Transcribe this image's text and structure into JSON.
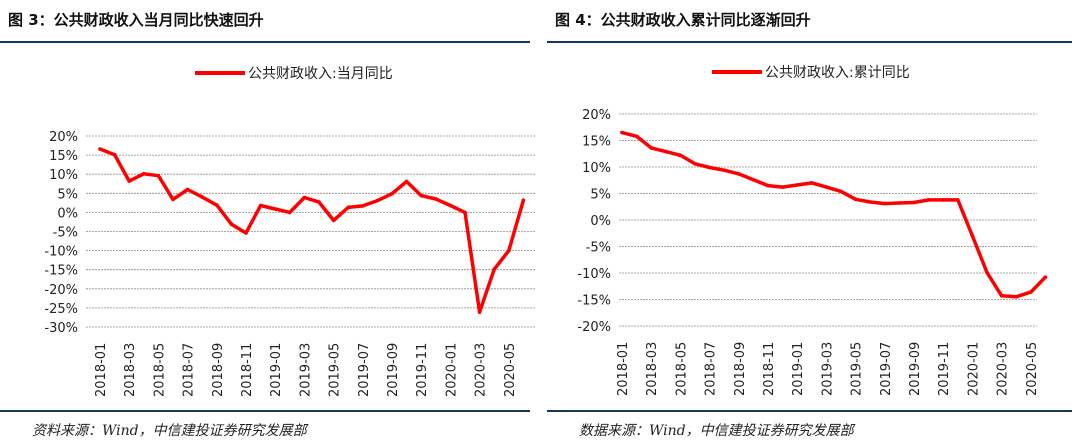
{
  "chart_data": [
    {
      "type": "line",
      "figure_title": "图 3：公共财政收入当月同比快速回升",
      "title": "",
      "xlabel": "",
      "ylabel": "",
      "ylim": [
        -30,
        20
      ],
      "y_ticks": [
        "20%",
        "15%",
        "10%",
        "5%",
        "0%",
        "-5%",
        "-10%",
        "-15%",
        "-20%",
        "-25%",
        "-30%"
      ],
      "x_tick_labels": [
        "2018-01",
        "2018-03",
        "2018-05",
        "2018-07",
        "2018-09",
        "2018-11",
        "2019-01",
        "2019-03",
        "2019-05",
        "2019-07",
        "2019-09",
        "2019-11",
        "2020-01",
        "2020-03",
        "2020-05"
      ],
      "grid": true,
      "legend": "top-center",
      "color": "#ff0000",
      "x": [
        "2018-01",
        "2018-02",
        "2018-03",
        "2018-04",
        "2018-05",
        "2018-06",
        "2018-07",
        "2018-08",
        "2018-09",
        "2018-10",
        "2018-11",
        "2018-12",
        "2019-01",
        "2019-02",
        "2019-03",
        "2019-04",
        "2019-05",
        "2019-06",
        "2019-07",
        "2019-08",
        "2019-09",
        "2019-10",
        "2019-11",
        "2019-12",
        "2020-01",
        "2020-02",
        "2020-03",
        "2020-04",
        "2020-05",
        "2020-06"
      ],
      "series": [
        {
          "name": "公共财政收入:当月同比",
          "values": [
            16.6,
            15.1,
            8.2,
            10.1,
            9.6,
            3.4,
            6.0,
            4.0,
            1.9,
            -3.1,
            -5.4,
            1.8,
            0.9,
            0.0,
            3.9,
            2.7,
            -2.1,
            1.3,
            1.7,
            3.1,
            4.9,
            8.1,
            4.4,
            3.5,
            1.8,
            0.0,
            -26.1,
            -14.9,
            -10.0,
            3.2
          ]
        }
      ],
      "source": "资料来源：Wind，中信建投证券研究发展部"
    },
    {
      "type": "line",
      "figure_title": "图 4：公共财政收入累计同比逐渐回升",
      "title": "",
      "xlabel": "",
      "ylabel": "",
      "ylim": [
        -20,
        20
      ],
      "y_ticks": [
        "20%",
        "15%",
        "10%",
        "5%",
        "0%",
        "-5%",
        "-10%",
        "-15%",
        "-20%"
      ],
      "x_tick_labels": [
        "2018-01",
        "2018-03",
        "2018-05",
        "2018-07",
        "2018-09",
        "2018-11",
        "2019-01",
        "2019-03",
        "2019-05",
        "2019-07",
        "2019-09",
        "2019-11",
        "2020-01",
        "2020-03",
        "2020-05"
      ],
      "grid": true,
      "legend": "top-center",
      "color": "#ff0000",
      "x": [
        "2018-01",
        "2018-02",
        "2018-03",
        "2018-04",
        "2018-05",
        "2018-06",
        "2018-07",
        "2018-08",
        "2018-09",
        "2018-10",
        "2018-11",
        "2018-12",
        "2019-01",
        "2019-02",
        "2019-03",
        "2019-04",
        "2019-05",
        "2019-06",
        "2019-07",
        "2019-08",
        "2019-09",
        "2019-10",
        "2019-11",
        "2019-12",
        "2020-01",
        "2020-02",
        "2020-03",
        "2020-04",
        "2020-05",
        "2020-06"
      ],
      "series": [
        {
          "name": "公共财政收入:累计同比",
          "values": [
            16.5,
            15.8,
            13.6,
            12.9,
            12.2,
            10.6,
            9.9,
            9.4,
            8.7,
            7.6,
            6.5,
            6.2,
            6.6,
            7.0,
            6.2,
            5.4,
            3.9,
            3.4,
            3.1,
            3.2,
            3.3,
            3.8,
            3.8,
            3.8,
            -3.0,
            -9.9,
            -14.3,
            -14.5,
            -13.6,
            -10.8
          ]
        }
      ],
      "source": "数据来源：Wind，中信建投证券研究发展部"
    }
  ]
}
